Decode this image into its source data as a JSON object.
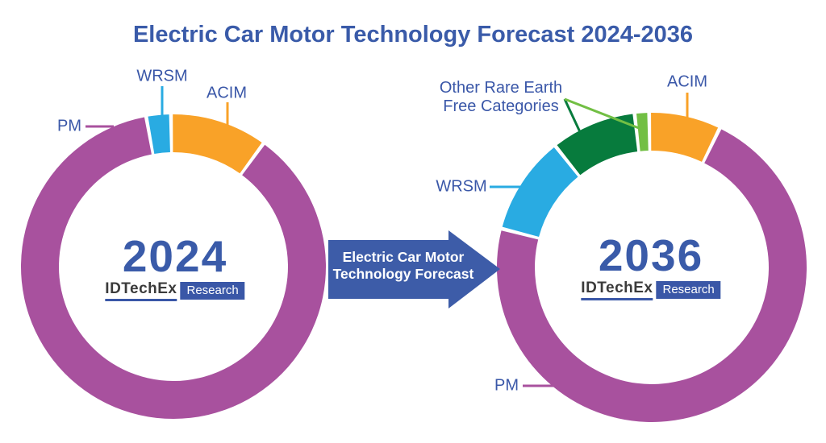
{
  "title": "Electric Car Motor Technology Forecast 2024-2036",
  "arrow": {
    "line1": "Electric Car Motor",
    "line2": "Technology Forecast"
  },
  "logo": {
    "wordmark": "IDTechEx",
    "badge": "Research"
  },
  "labels": {
    "left_pm": "PM",
    "left_wrsm": "WRSM",
    "left_acim": "ACIM",
    "right_wrsm": "WRSM",
    "right_other_line1": "Other Rare Earth",
    "right_other_line2": "Free Categories",
    "right_acim": "ACIM",
    "right_pm": "PM"
  },
  "colors": {
    "pm_purple": "#A8519E",
    "wrsm_cyan": "#29ABE2",
    "acim_orange": "#F9A228",
    "other_dark_green": "#077B3D",
    "other_light_green": "#72BF44",
    "title_blue": "#3A5BA9",
    "text_blue": "#3A57A8",
    "arrow_blue": "#3D5CA8",
    "logo_blue": "#3A57A7",
    "logo_text_dark": "#3B3B3B",
    "background": "#FFFFFF"
  },
  "chart_data": [
    {
      "type": "donut",
      "center_label": "2024",
      "value_unit": "percent_of_total_estimated",
      "start_angle_deg": -10.3,
      "segments": [
        {
          "label": "WRSM",
          "value_percent": 2.6,
          "color": "#29ABE2"
        },
        {
          "label": "ACIM",
          "value_percent": 10.3,
          "color": "#F9A228"
        },
        {
          "label": "PM",
          "value_percent": 87.1,
          "color": "#A8519E"
        }
      ]
    },
    {
      "type": "donut",
      "center_label": "2036",
      "value_unit": "percent_of_total_estimated",
      "start_angle_deg": -75.5,
      "segments": [
        {
          "label": "WRSM",
          "value_percent": 10.3,
          "color": "#29ABE2"
        },
        {
          "label": "Other Rare Earth Free Categories",
          "value_percent": 8.9,
          "color": "#077B3D"
        },
        {
          "label": "Other Rare Earth Free Categories",
          "value_percent": 1.5,
          "color": "#72BF44"
        },
        {
          "label": "ACIM",
          "value_percent": 7.5,
          "color": "#F9A228"
        },
        {
          "label": "PM",
          "value_percent": 71.8,
          "color": "#A8519E"
        }
      ]
    }
  ]
}
